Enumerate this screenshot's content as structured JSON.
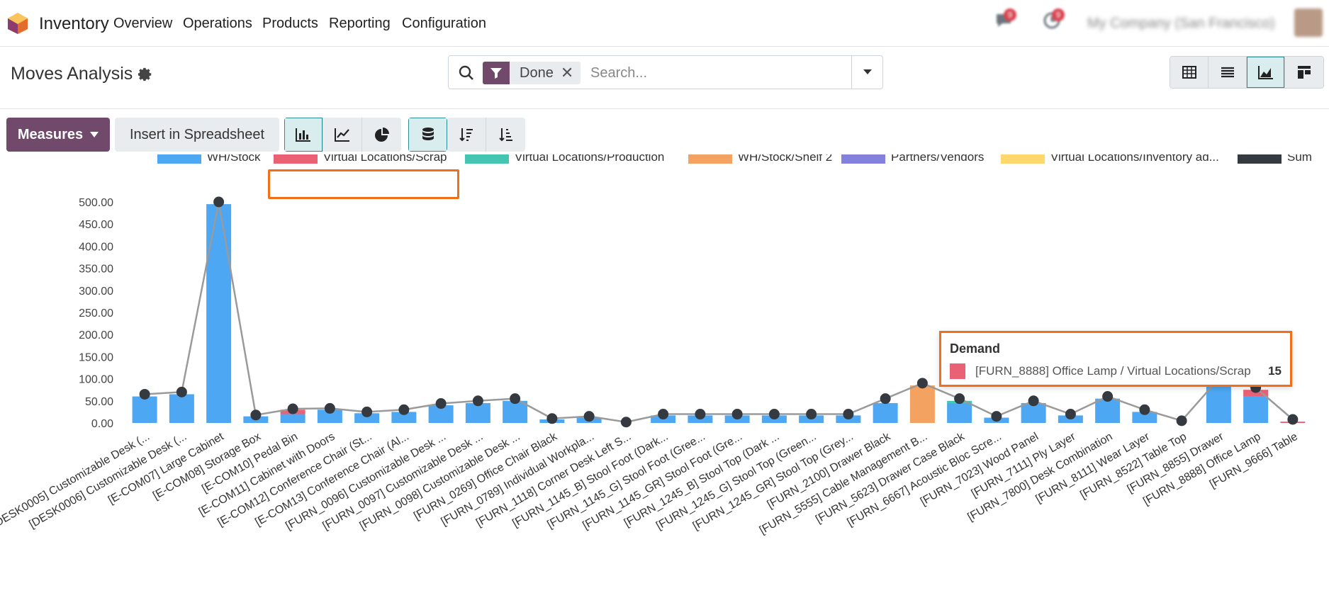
{
  "topnav": {
    "app_name": "Inventory",
    "menu": [
      "Overview",
      "Operations",
      "Products",
      "Reporting",
      "Configuration"
    ],
    "messages_badge": "9",
    "activities_badge": "9",
    "company": "My Company (San Francisco)"
  },
  "control": {
    "title": "Moves Analysis",
    "facet": "Done",
    "search_placeholder": "Search..."
  },
  "toolbar": {
    "measures_label": "Measures",
    "insert_label": "Insert in Spreadsheet"
  },
  "colors": {
    "accent": "#71496a",
    "highlight": "#f26f1a"
  },
  "chart_data": {
    "type": "bar",
    "stacked": true,
    "y_ticks": [
      "500.00",
      "450.00",
      "400.00",
      "350.00",
      "300.00",
      "250.00",
      "200.00",
      "150.00",
      "100.00",
      "50.00",
      "0.00"
    ],
    "ylim": [
      0,
      500
    ],
    "legend_position": "top",
    "categories": [
      "[DESK0005] Customizable Desk (...",
      "[DESK0006] Customizable Desk (...",
      "[E-COM07] Large Cabinet",
      "[E-COM08] Storage Box",
      "[E-COM10] Pedal Bin",
      "[E-COM11] Cabinet with Doors",
      "[E-COM12] Conference Chair (St...",
      "[E-COM13] Conference Chair (Al...",
      "[FURN_0096] Customizable Desk ...",
      "[FURN_0097] Customizable Desk ...",
      "[FURN_0098] Customizable Desk ...",
      "[FURN_0269] Office Chair Black",
      "[FURN_0789] Individual Workpla...",
      "[FURN_1118] Corner Desk Left S...",
      "[FURN_1145_B] Stool Foot (Dark...",
      "[FURN_1145_G] Stool Foot (Gree...",
      "[FURN_1145_GR] Stool Foot (Gre...",
      "[FURN_1245_B] Stool Top (Dark ...",
      "[FURN_1245_G] Stool Top (Green...",
      "[FURN_1245_GR] Stool Top (Grey...",
      "[FURN_2100] Drawer Black",
      "[FURN_5555] Cable Management B...",
      "[FURN_5623] Drawer Case Black",
      "[FURN_6667] Acoustic Bloc Scre...",
      "[FURN_7023] Wood Panel",
      "[FURN_7111] Ply Layer",
      "[FURN_7800] Desk Combination",
      "[FURN_8111] Wear Layer",
      "[FURN_8522] Table Top",
      "[FURN_8855] Drawer",
      "[FURN_8888] Office Lamp",
      "[FURN_9666] Table"
    ],
    "series": [
      {
        "name": "WH/Stock",
        "color": "#4ea7f2",
        "values": [
          60,
          65,
          495,
          15,
          20,
          30,
          22,
          25,
          40,
          45,
          50,
          8,
          12,
          0,
          17,
          17,
          17,
          17,
          17,
          17,
          45,
          0,
          45,
          12,
          45,
          17,
          55,
          25,
          0,
          100,
          60,
          0
        ]
      },
      {
        "name": "Virtual Locations/Scrap",
        "color": "#ea6175",
        "values": [
          0,
          0,
          0,
          0,
          10,
          0,
          0,
          0,
          0,
          0,
          0,
          0,
          0,
          0,
          0,
          0,
          0,
          0,
          0,
          0,
          0,
          0,
          0,
          0,
          0,
          0,
          0,
          0,
          0,
          0,
          15,
          3
        ]
      },
      {
        "name": "Virtual Locations/Production",
        "color": "#43c5b1",
        "values": [
          0,
          0,
          0,
          0,
          0,
          0,
          0,
          0,
          0,
          0,
          0,
          0,
          0,
          0,
          0,
          0,
          0,
          0,
          0,
          0,
          0,
          0,
          5,
          0,
          0,
          0,
          0,
          0,
          0,
          0,
          0,
          0
        ]
      },
      {
        "name": "WH/Stock/Shelf 2",
        "color": "#f4a261",
        "values": [
          0,
          0,
          0,
          0,
          0,
          0,
          0,
          0,
          0,
          0,
          0,
          0,
          0,
          0,
          0,
          0,
          0,
          0,
          0,
          0,
          0,
          85,
          0,
          0,
          0,
          0,
          0,
          0,
          0,
          0,
          0,
          0
        ]
      },
      {
        "name": "Partners/Vendors",
        "color": "#8481dd",
        "values": [
          0,
          0,
          0,
          0,
          0,
          0,
          0,
          0,
          0,
          0,
          0,
          0,
          0,
          0,
          0,
          0,
          0,
          0,
          0,
          0,
          0,
          0,
          0,
          0,
          0,
          0,
          0,
          0,
          0,
          0,
          0,
          0
        ]
      },
      {
        "name": "Virtual Locations/Inventory ad...",
        "color": "#ffd86d",
        "values": [
          0,
          0,
          0,
          0,
          0,
          0,
          0,
          0,
          0,
          0,
          0,
          0,
          0,
          0,
          0,
          0,
          0,
          0,
          0,
          0,
          0,
          0,
          0,
          0,
          0,
          0,
          0,
          0,
          0,
          0,
          0,
          0
        ]
      }
    ],
    "sum_series": {
      "name": "Sum",
      "color": "#343a40",
      "values": [
        65,
        70,
        500,
        18,
        32,
        33,
        25,
        30,
        44,
        50,
        55,
        10,
        15,
        2,
        20,
        20,
        20,
        20,
        20,
        20,
        55,
        90,
        55,
        15,
        50,
        20,
        60,
        30,
        5,
        100,
        80,
        8
      ]
    }
  },
  "tooltip": {
    "title": "Demand",
    "label": "[FURN_8888] Office Lamp / Virtual Locations/Scrap",
    "value": "15",
    "swatch_color": "#ea6175"
  }
}
